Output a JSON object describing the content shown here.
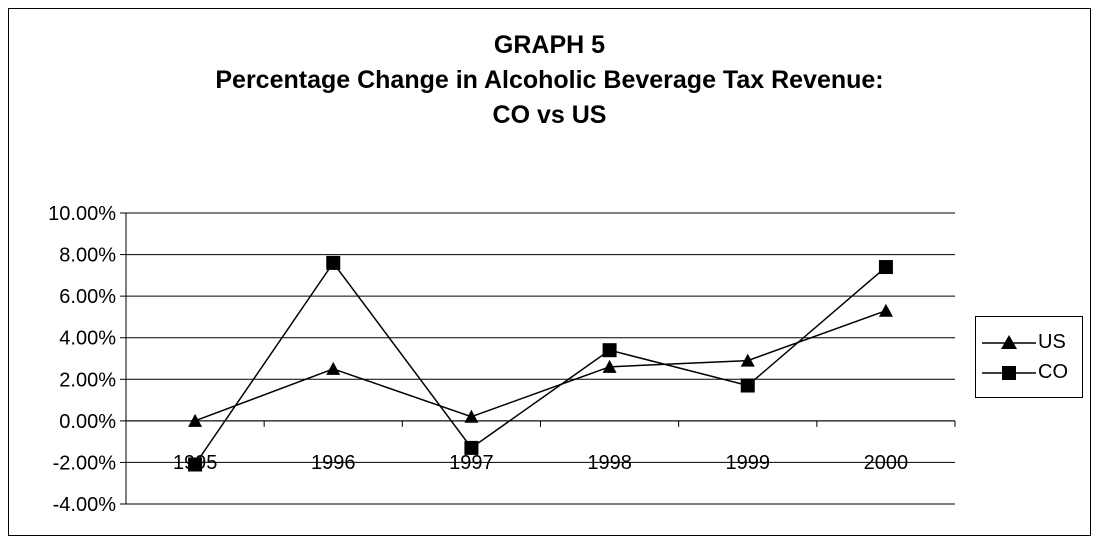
{
  "title": {
    "line1": "GRAPH 5",
    "line2": "Percentage Change in Alcoholic Beverage Tax Revenue:",
    "line3": "CO vs US"
  },
  "chart_data": {
    "type": "line",
    "title": "GRAPH 5 Percentage Change in Alcoholic Beverage Tax Revenue: CO vs US",
    "xlabel": "",
    "ylabel": "",
    "categories": [
      "1995",
      "1996",
      "1997",
      "1998",
      "1999",
      "2000"
    ],
    "ylim": [
      -4,
      10
    ],
    "ytick_step": 2,
    "ytick_labels": [
      "-4.00%",
      "-2.00%",
      "0.00%",
      "2.00%",
      "4.00%",
      "6.00%",
      "8.00%",
      "10.00%"
    ],
    "grid": "horizontal",
    "legend_position": "right",
    "series": [
      {
        "name": "US",
        "marker": "triangle",
        "color": "#000000",
        "values": [
          0.0,
          2.5,
          0.2,
          2.6,
          2.9,
          5.3
        ]
      },
      {
        "name": "CO",
        "marker": "square",
        "color": "#000000",
        "values": [
          -2.1,
          7.6,
          -1.3,
          3.4,
          1.7,
          7.4
        ]
      }
    ]
  }
}
